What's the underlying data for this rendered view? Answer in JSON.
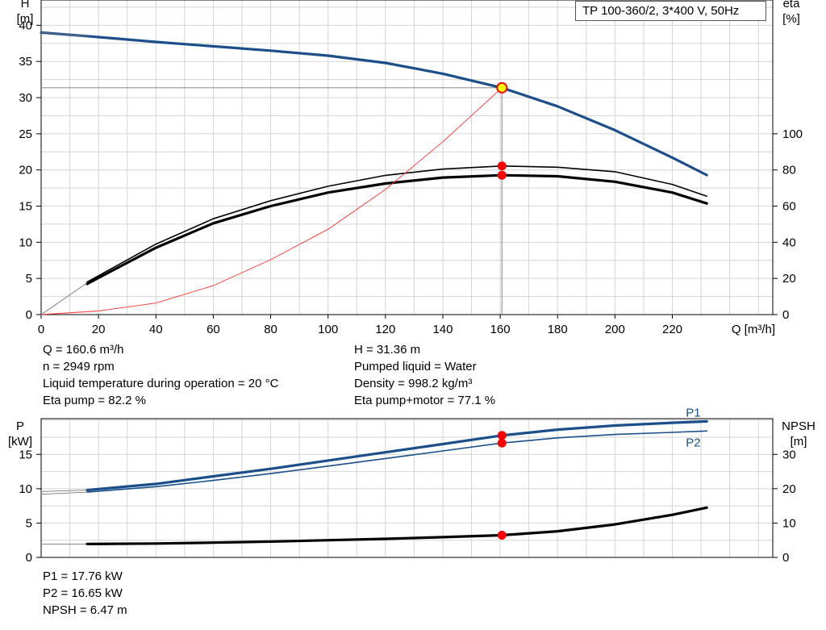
{
  "pump_label": "TP 100-360/2, 3*400 V, 50Hz",
  "info_left": [
    "Q = 160.6 m³/h",
    "n = 2949 rpm",
    "Liquid temperature during operation = 20 °C",
    "Eta pump = 82.2 %"
  ],
  "info_right": [
    "H = 31.36 m",
    "Pumped liquid = Water",
    "Density = 998.2 kg/m³",
    "Eta pump+motor = 77.1 %"
  ],
  "info_bottom": [
    "P1 = 17.76 kW",
    "P2 = 16.65 kW",
    "NPSH = 6.47 m"
  ],
  "colors": {
    "head": "#1a4f8a",
    "power": "#1a4f8a",
    "eta": "#000000",
    "npsh": "#000000",
    "system": "#ff3030",
    "operating_point": "#ff0000",
    "marker_fill": "#ffff00",
    "grid": "#d4d4d4"
  },
  "chart_data": [
    {
      "type": "line",
      "xlabel": "Q [m³/h]",
      "ylabel": "H\n[m]",
      "y2label": "eta\n[%]",
      "xlim": [
        0,
        255
      ],
      "ylim": [
        0,
        43.5
      ],
      "y2lim": [
        0,
        174
      ],
      "xticks": [
        0,
        20,
        40,
        60,
        80,
        100,
        120,
        140,
        160,
        180,
        200,
        220
      ],
      "yticks": [
        0,
        5,
        10,
        15,
        20,
        25,
        30,
        35,
        40
      ],
      "y2ticks": [
        0,
        20,
        40,
        60,
        80,
        100
      ],
      "grid": true,
      "series": [
        {
          "axis": "left",
          "style": "thick-blue",
          "x": [
            0,
            16,
            40,
            60,
            80,
            100,
            120,
            140,
            160.6,
            180,
            200,
            220,
            232
          ],
          "y": [
            39,
            38.5,
            37.7,
            37.1,
            36.5,
            35.8,
            34.8,
            33.3,
            31.36,
            28.8,
            25.5,
            21.7,
            19.3
          ]
        },
        {
          "axis": "right",
          "style": "thin-black",
          "x": [
            16,
            40,
            60,
            80,
            100,
            120,
            140,
            160.6,
            180,
            200,
            220,
            232
          ],
          "y": [
            18,
            39,
            53,
            63,
            71,
            77,
            80.5,
            82.2,
            81.5,
            79,
            72,
            65.5
          ]
        },
        {
          "axis": "right",
          "style": "thick-black",
          "x": [
            16,
            40,
            60,
            80,
            100,
            120,
            140,
            160.6,
            180,
            200,
            220,
            232
          ],
          "y": [
            17,
            37,
            50.5,
            60,
            67.5,
            72.5,
            75.8,
            77.1,
            76.5,
            73.5,
            67.5,
            61.5
          ]
        },
        {
          "axis": "left",
          "style": "thin-red",
          "x": [
            0,
            20,
            40,
            60,
            80,
            100,
            120,
            140,
            160.6
          ],
          "y": [
            0,
            0.5,
            1.6,
            4,
            7.6,
            11.8,
            17.3,
            23.9,
            31.36
          ]
        },
        {
          "axis": "left",
          "style": "thin-grey",
          "x": [
            0,
            16
          ],
          "y": [
            39,
            38.5
          ]
        },
        {
          "axis": "right",
          "style": "thin-grey",
          "x": [
            0,
            16
          ],
          "y": [
            0,
            17.5
          ]
        }
      ],
      "operating_point": {
        "q": 160.6,
        "h": 31.36,
        "eta_pump": 82.2,
        "eta_total": 77.1
      }
    },
    {
      "type": "line",
      "ylabel": "P\n[kW]",
      "y2label": "NPSH\n[m]",
      "xlim": [
        0,
        255
      ],
      "ylim": [
        0,
        20.2
      ],
      "y2lim": [
        0,
        40.4
      ],
      "yticks": [
        0,
        5,
        10,
        15
      ],
      "y2ticks": [
        0,
        10,
        20,
        30
      ],
      "grid": true,
      "series": [
        {
          "name": "P1",
          "axis": "left",
          "style": "thick-blue",
          "x": [
            16,
            40,
            60,
            80,
            100,
            120,
            140,
            160.6,
            180,
            200,
            220,
            232
          ],
          "y": [
            9.8,
            10.7,
            11.8,
            12.9,
            14.1,
            15.3,
            16.5,
            17.76,
            18.6,
            19.2,
            19.6,
            19.8
          ]
        },
        {
          "name": "P2",
          "axis": "left",
          "style": "thin-blue",
          "x": [
            16,
            40,
            60,
            80,
            100,
            120,
            140,
            160.6,
            180,
            200,
            220,
            232
          ],
          "y": [
            9.5,
            10.3,
            11.2,
            12.2,
            13.3,
            14.4,
            15.5,
            16.65,
            17.4,
            17.9,
            18.2,
            18.4
          ]
        },
        {
          "axis": "right",
          "style": "thick-black",
          "x": [
            16,
            40,
            60,
            80,
            100,
            120,
            140,
            160.6,
            180,
            200,
            220,
            232
          ],
          "y": [
            3.9,
            4.05,
            4.3,
            4.6,
            5,
            5.4,
            5.9,
            6.47,
            7.6,
            9.6,
            12.4,
            14.5
          ]
        },
        {
          "axis": "left",
          "style": "thin-grey",
          "x": [
            0,
            16
          ],
          "y": [
            9.2,
            9.5
          ]
        },
        {
          "axis": "left",
          "style": "thin-grey",
          "x": [
            0,
            16
          ],
          "y": [
            9.6,
            9.8
          ]
        },
        {
          "axis": "right",
          "style": "thin-grey",
          "x": [
            0,
            16
          ],
          "y": [
            3.9,
            3.9
          ]
        }
      ],
      "operating_point": {
        "q": 160.6,
        "p1": 17.76,
        "p2": 16.65,
        "npsh": 6.47
      }
    }
  ]
}
